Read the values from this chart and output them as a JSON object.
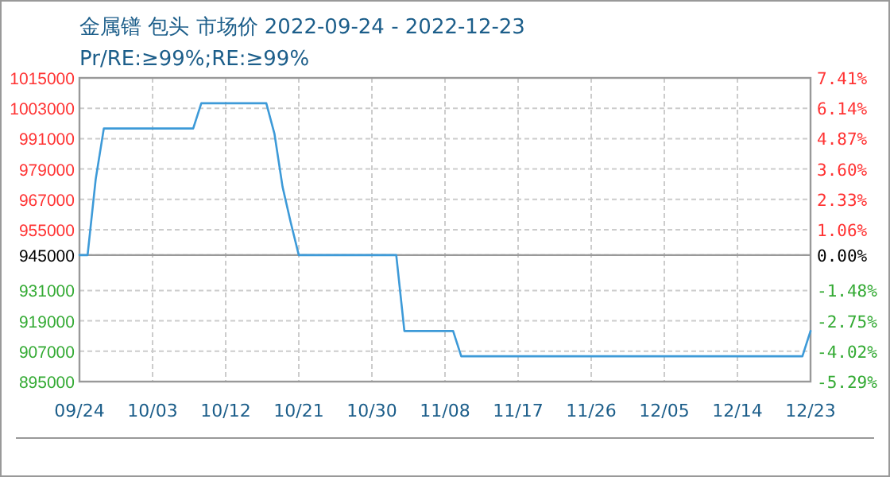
{
  "chart_data": {
    "type": "line",
    "title": "金属镨 包头 市场价 2022-09-24 - 2022-12-23",
    "subtitle": "Pr/RE:≥99%;RE:≥99%",
    "x": [
      "2022-09-24",
      "2022-09-25",
      "2022-09-26",
      "2022-09-27",
      "2022-10-08",
      "2022-10-09",
      "2022-10-17",
      "2022-10-18",
      "2022-10-19",
      "2022-10-20",
      "2022-10-21",
      "2022-11-02",
      "2022-11-03",
      "2022-11-09",
      "2022-11-10",
      "2022-12-22",
      "2022-12-23"
    ],
    "series": [
      {
        "color": "#3d9ad8",
        "values": [
          945000,
          945000,
          975000,
          995000,
          995000,
          1005000,
          1005000,
          993000,
          972000,
          958000,
          945000,
          945000,
          915000,
          915000,
          905000,
          905000,
          915000
        ]
      }
    ],
    "xlim": [
      "2022-09-24",
      "2022-12-23"
    ],
    "xticks": [
      {
        "value": "2022-09-24",
        "label": "09/24"
      },
      {
        "value": "2022-10-03",
        "label": "10/03"
      },
      {
        "value": "2022-10-12",
        "label": "10/12"
      },
      {
        "value": "2022-10-21",
        "label": "10/21"
      },
      {
        "value": "2022-10-30",
        "label": "10/30"
      },
      {
        "value": "2022-11-08",
        "label": "11/08"
      },
      {
        "value": "2022-11-17",
        "label": "11/17"
      },
      {
        "value": "2022-11-26",
        "label": "11/26"
      },
      {
        "value": "2022-12-05",
        "label": "12/05"
      },
      {
        "value": "2022-12-14",
        "label": "12/14"
      },
      {
        "value": "2022-12-23",
        "label": "12/23"
      }
    ],
    "ylim": [
      895000,
      1015000
    ],
    "yticks": [
      1015000,
      1003000,
      991000,
      979000,
      967000,
      955000,
      945000,
      931000,
      919000,
      907000,
      895000
    ],
    "y2lim": [
      -5.29,
      7.41
    ],
    "y2ticks": [
      {
        "value": 7.41,
        "label": "7.41%"
      },
      {
        "value": 6.14,
        "label": "6.14%"
      },
      {
        "value": 4.87,
        "label": "4.87%"
      },
      {
        "value": 3.6,
        "label": "3.60%"
      },
      {
        "value": 2.33,
        "label": "2.33%"
      },
      {
        "value": 1.06,
        "label": "1.06%"
      },
      {
        "value": 0,
        "label": "0.00%"
      },
      {
        "value": -1.48,
        "label": "-1.48%"
      },
      {
        "value": -2.75,
        "label": "-2.75%"
      },
      {
        "value": -4.02,
        "label": "-4.02%"
      },
      {
        "value": -5.29,
        "label": "-5.29%"
      }
    ],
    "grid": true,
    "ref_lines": [
      {
        "axis": "y",
        "value": 945000,
        "color": "#999999",
        "line_style": "solid"
      }
    ]
  }
}
